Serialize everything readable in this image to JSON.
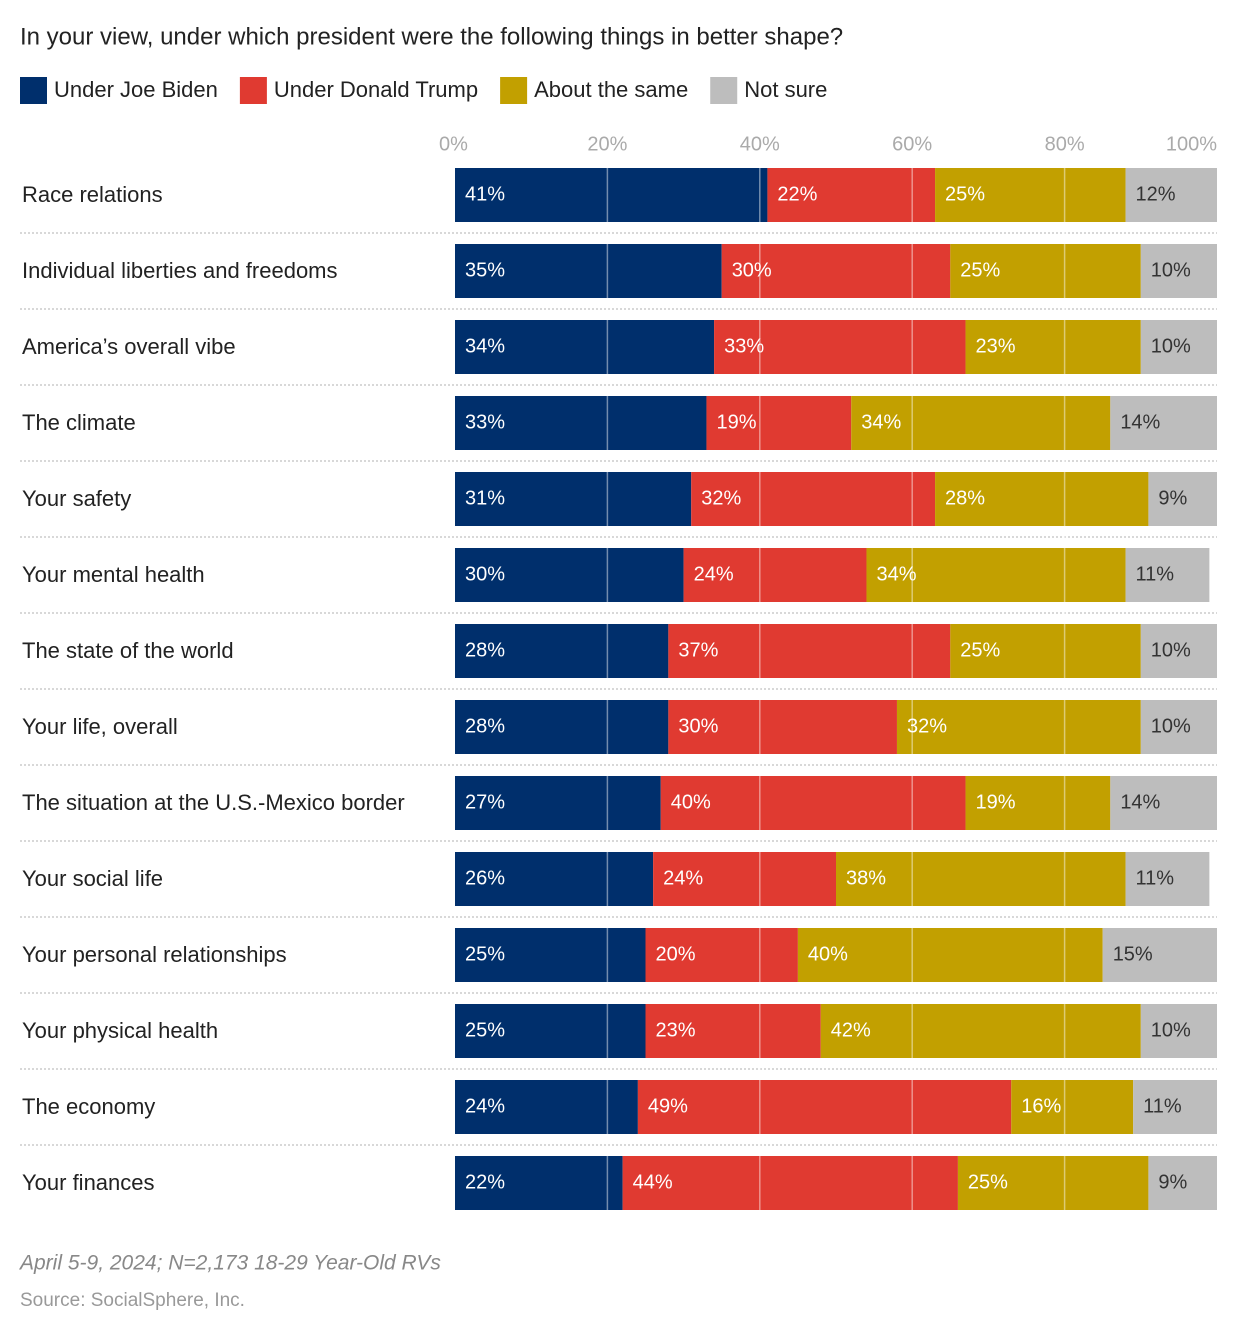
{
  "chart_data": {
    "type": "stacked-bar-horizontal",
    "title": "In your view, under which president were the following things in better shape?",
    "categories": [
      "Race relations",
      "Individual liberties and freedoms",
      "America’s overall vibe",
      "The climate",
      "Your safety",
      "Your mental health",
      "The state of the world",
      "Your life, overall",
      "The situation at the U.S.-Mexico border",
      "Your social life",
      "Your personal relationships",
      "Your physical health",
      "The economy",
      "Your finances"
    ],
    "series": [
      {
        "name": "Under Joe Biden",
        "color": "#002f6c",
        "values": [
          41,
          35,
          34,
          33,
          31,
          30,
          28,
          28,
          27,
          26,
          25,
          25,
          24,
          22
        ],
        "value_labels": [
          "41%",
          "35%",
          "34%",
          "33%",
          "31%",
          "30%",
          "28%",
          "28%",
          "27%",
          "26%",
          "25%",
          "25%",
          "24%",
          "22%"
        ]
      },
      {
        "name": "Under Donald Trump",
        "color": "#e03a31",
        "values": [
          22,
          30,
          33,
          19,
          32,
          24,
          37,
          30,
          40,
          24,
          20,
          23,
          49,
          44
        ],
        "value_labels": [
          "22%",
          "30%",
          "33%",
          "19%",
          "32%",
          "24%",
          "37%",
          "30%",
          "40%",
          "24%",
          "20%",
          "23%",
          "49%",
          "44%"
        ]
      },
      {
        "name": "About the same",
        "color": "#c2a000",
        "values": [
          25,
          25,
          23,
          34,
          28,
          34,
          25,
          32,
          19,
          38,
          40,
          42,
          16,
          25
        ],
        "value_labels": [
          "25%",
          "25%",
          "23%",
          "34%",
          "28%",
          "34%",
          "25%",
          "32%",
          "19%",
          "38%",
          "40%",
          "42%",
          "16%",
          "25%"
        ]
      },
      {
        "name": "Not sure",
        "color": "#bdbdbd",
        "values": [
          12,
          10,
          10,
          14,
          9,
          11,
          10,
          10,
          14,
          11,
          15,
          10,
          11,
          9
        ],
        "value_labels": [
          "12%",
          "10%",
          "10%",
          "14%",
          "9%",
          "11%",
          "10%",
          "10%",
          "14%",
          "11%",
          "15%",
          "10%",
          "11%",
          "9%"
        ]
      }
    ],
    "xlim": [
      0,
      100
    ],
    "xticks": [
      {
        "value": 0,
        "label": "0%"
      },
      {
        "value": 20,
        "label": "20%"
      },
      {
        "value": 40,
        "label": "40%"
      },
      {
        "value": 60,
        "label": "60%"
      },
      {
        "value": 80,
        "label": "80%"
      },
      {
        "value": 100,
        "label": "100%"
      }
    ],
    "grid": true,
    "note": "April 5-9, 2024; N=2,173 18-29 Year-Old RVs",
    "source": "Source: SocialSphere, Inc."
  }
}
